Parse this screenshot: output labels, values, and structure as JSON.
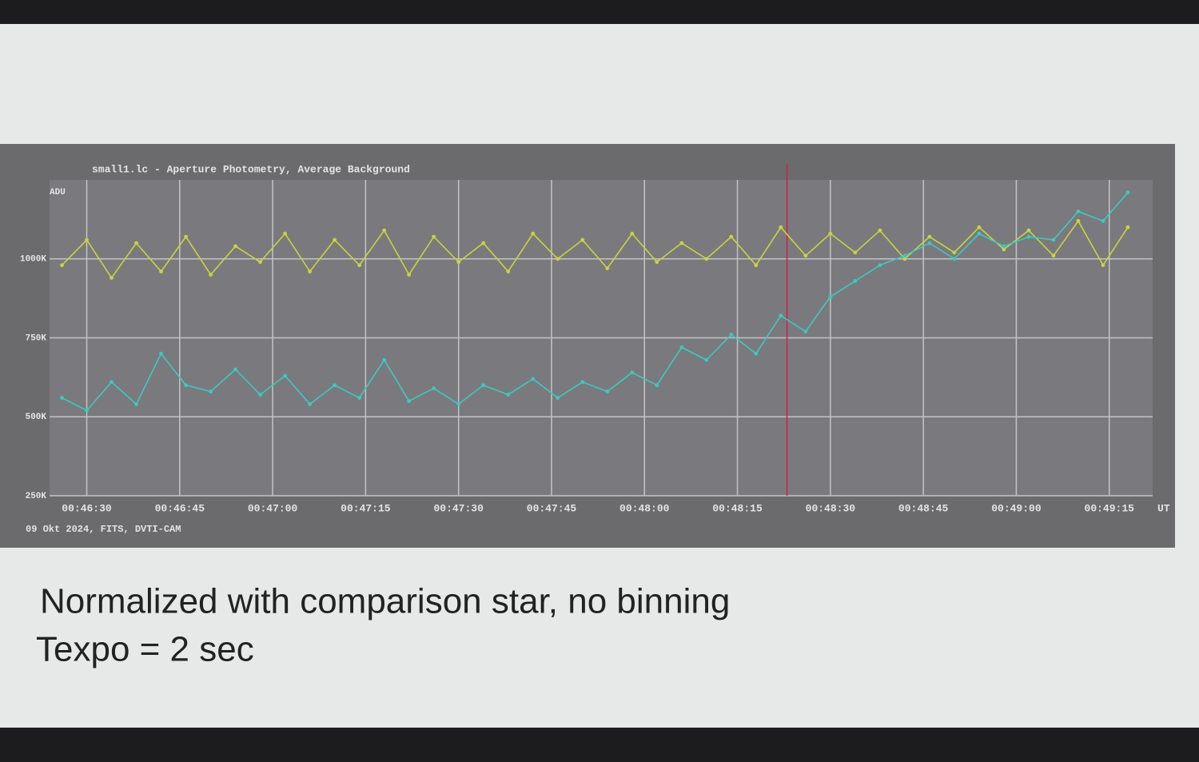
{
  "chart_data": {
    "type": "line",
    "title": "small1.lc - Aperture Photometry, Average Background",
    "y_label": "ADU",
    "x_label": "UT",
    "footer": "09 Okt 2024, FITS, DVTI-CAM",
    "x": [
      "00:46:26",
      "00:46:30",
      "00:46:34",
      "00:46:38",
      "00:46:42",
      "00:46:46",
      "00:46:50",
      "00:46:54",
      "00:46:58",
      "00:47:02",
      "00:47:06",
      "00:47:10",
      "00:47:14",
      "00:47:18",
      "00:47:22",
      "00:47:26",
      "00:47:30",
      "00:47:34",
      "00:47:38",
      "00:47:42",
      "00:47:46",
      "00:47:50",
      "00:47:54",
      "00:47:58",
      "00:48:02",
      "00:48:06",
      "00:48:10",
      "00:48:14",
      "00:48:18",
      "00:48:22",
      "00:48:26",
      "00:48:30",
      "00:48:34",
      "00:48:38",
      "00:48:42",
      "00:48:46",
      "00:48:50",
      "00:48:54",
      "00:48:58",
      "00:49:02",
      "00:49:06",
      "00:49:10",
      "00:49:14",
      "00:49:18"
    ],
    "series": [
      {
        "name": "yellow",
        "color": "#c9d43c",
        "values": [
          980000,
          1060000,
          940000,
          1050000,
          960000,
          1070000,
          950000,
          1040000,
          990000,
          1080000,
          960000,
          1060000,
          980000,
          1090000,
          950000,
          1070000,
          990000,
          1050000,
          960000,
          1080000,
          1000000,
          1060000,
          970000,
          1080000,
          990000,
          1050000,
          1000000,
          1070000,
          980000,
          1100000,
          1010000,
          1080000,
          1020000,
          1090000,
          1000000,
          1070000,
          1020000,
          1100000,
          1030000,
          1090000,
          1010000,
          1120000,
          980000,
          1100000
        ]
      },
      {
        "name": "cyan",
        "color": "#3cc9bf",
        "values": [
          560000,
          520000,
          610000,
          540000,
          700000,
          600000,
          580000,
          650000,
          570000,
          630000,
          540000,
          600000,
          560000,
          680000,
          550000,
          590000,
          540000,
          600000,
          570000,
          620000,
          560000,
          610000,
          580000,
          640000,
          600000,
          720000,
          680000,
          760000,
          700000,
          820000,
          770000,
          880000,
          930000,
          980000,
          1010000,
          1050000,
          1000000,
          1080000,
          1040000,
          1070000,
          1060000,
          1150000,
          1120000,
          1210000
        ]
      }
    ],
    "marker_x": "00:48:23",
    "marker_color": "#d02040",
    "xlim": [
      "00:46:24",
      "00:49:22"
    ],
    "xticks": [
      "00:46:30",
      "00:46:45",
      "00:47:00",
      "00:47:15",
      "00:47:30",
      "00:47:45",
      "00:48:00",
      "00:48:15",
      "00:48:30",
      "00:48:45",
      "00:49:00",
      "00:49:15"
    ],
    "ylim": [
      250000,
      1250000
    ],
    "yticks": [
      {
        "value": 250000,
        "label": "250K"
      },
      {
        "value": 500000,
        "label": "500K"
      },
      {
        "value": 750000,
        "label": "750K"
      },
      {
        "value": 1000000,
        "label": "1000K"
      }
    ],
    "grid": true
  },
  "slide": {
    "caption": "Normalized with comparison star, no binning",
    "subcaption": "Texpo = 2 sec"
  }
}
